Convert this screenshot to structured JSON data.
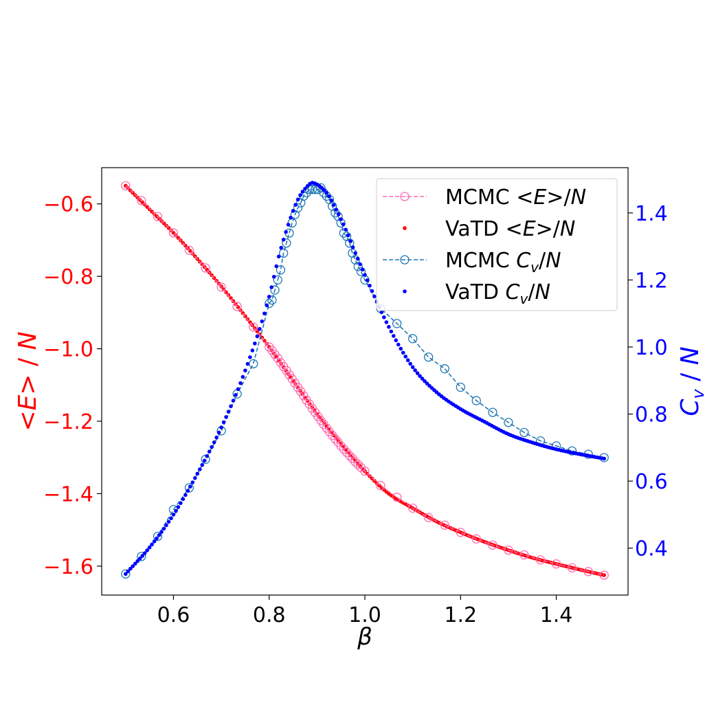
{
  "chart_data": {
    "type": "line",
    "title": "",
    "xlabel": "β",
    "ylabel_left": "<E> / N",
    "ylabel_right": "C_v / N",
    "xlim": [
      0.45,
      1.55
    ],
    "ylim_left": [
      -1.68,
      -0.5
    ],
    "ylim_right": [
      0.26,
      1.535
    ],
    "x_ticks": [
      "0.6",
      "0.8",
      "1.0",
      "1.2",
      "1.4"
    ],
    "x_tick_values": [
      0.6,
      0.8,
      1.0,
      1.2,
      1.4
    ],
    "y_left_ticks": [
      "−0.6",
      "−0.8",
      "−1.0",
      "−1.2",
      "−1.4",
      "−1.6"
    ],
    "y_left_tick_values": [
      -0.6,
      -0.8,
      -1.0,
      -1.2,
      -1.4,
      -1.6
    ],
    "y_right_ticks": [
      "1.4",
      "1.2",
      "1.0",
      "0.8",
      "0.6",
      "0.4"
    ],
    "y_right_tick_values": [
      1.4,
      1.2,
      1.0,
      0.8,
      0.6,
      0.4
    ],
    "legend_position": "upper right",
    "colors": {
      "energy_axis": "#ff0000",
      "cv_axis": "#0000ff",
      "mcmc_energy": "#ff69b4",
      "vatd_energy": "#ff0000",
      "mcmc_cv": "#1f77b4",
      "vatd_cv": "#0000ff"
    },
    "series": [
      {
        "key": "mcmc_energy",
        "name": "MCMC  <E>/N",
        "axis": "left",
        "style": "dashed-circle",
        "x": [
          0.5,
          0.533,
          0.567,
          0.6,
          0.633,
          0.667,
          0.7,
          0.733,
          0.767,
          0.8,
          0.806,
          0.812,
          0.818,
          0.824,
          0.83,
          0.836,
          0.842,
          0.848,
          0.854,
          0.86,
          0.866,
          0.872,
          0.878,
          0.884,
          0.89,
          0.896,
          0.902,
          0.908,
          0.914,
          0.92,
          0.926,
          0.932,
          0.938,
          0.944,
          0.95,
          0.956,
          0.962,
          0.968,
          0.974,
          0.98,
          0.986,
          0.992,
          1.0,
          1.033,
          1.067,
          1.1,
          1.133,
          1.167,
          1.2,
          1.233,
          1.267,
          1.3,
          1.333,
          1.367,
          1.4,
          1.433,
          1.467,
          1.5
        ],
        "y": [
          -0.55,
          -0.591,
          -0.635,
          -0.68,
          -0.728,
          -0.777,
          -0.83,
          -0.883,
          -0.94,
          -0.995,
          -1.005,
          -1.016,
          -1.026,
          -1.038,
          -1.049,
          -1.06,
          -1.072,
          -1.083,
          -1.095,
          -1.107,
          -1.118,
          -1.13,
          -1.142,
          -1.153,
          -1.165,
          -1.176,
          -1.187,
          -1.198,
          -1.209,
          -1.219,
          -1.229,
          -1.239,
          -1.249,
          -1.258,
          -1.268,
          -1.277,
          -1.286,
          -1.295,
          -1.303,
          -1.312,
          -1.32,
          -1.328,
          -1.338,
          -1.378,
          -1.41,
          -1.44,
          -1.466,
          -1.487,
          -1.507,
          -1.525,
          -1.542,
          -1.556,
          -1.569,
          -1.583,
          -1.594,
          -1.605,
          -1.615,
          -1.625
        ]
      },
      {
        "key": "vatd_energy",
        "name": "VaTD  <E>/N",
        "axis": "left",
        "style": "dots",
        "x": [
          0.5,
          0.55,
          0.6,
          0.65,
          0.7,
          0.75,
          0.8,
          0.85,
          0.9,
          0.95,
          1.0,
          1.05,
          1.1,
          1.15,
          1.2,
          1.25,
          1.3,
          1.35,
          1.4,
          1.45,
          1.5
        ],
        "y": [
          -0.55,
          -0.615,
          -0.68,
          -0.752,
          -0.828,
          -0.91,
          -0.995,
          -1.088,
          -1.18,
          -1.263,
          -1.338,
          -1.4,
          -1.44,
          -1.477,
          -1.507,
          -1.533,
          -1.556,
          -1.577,
          -1.594,
          -1.61,
          -1.625
        ]
      },
      {
        "key": "mcmc_cv",
        "name": "MCMC C_v/N",
        "axis": "right",
        "style": "dashed-circle",
        "x": [
          0.5,
          0.533,
          0.567,
          0.6,
          0.633,
          0.667,
          0.7,
          0.733,
          0.767,
          0.8,
          0.806,
          0.812,
          0.818,
          0.824,
          0.83,
          0.836,
          0.842,
          0.848,
          0.854,
          0.86,
          0.866,
          0.872,
          0.878,
          0.884,
          0.89,
          0.896,
          0.902,
          0.908,
          0.914,
          0.92,
          0.926,
          0.932,
          0.938,
          0.944,
          0.95,
          0.956,
          0.962,
          0.968,
          0.974,
          0.98,
          0.986,
          0.992,
          1.0,
          1.033,
          1.067,
          1.1,
          1.133,
          1.167,
          1.2,
          1.233,
          1.267,
          1.3,
          1.333,
          1.367,
          1.4,
          1.433,
          1.467,
          1.5
        ],
        "y": [
          0.323,
          0.375,
          0.435,
          0.515,
          0.58,
          0.665,
          0.75,
          0.86,
          0.95,
          1.13,
          1.14,
          1.17,
          1.2,
          1.23,
          1.28,
          1.31,
          1.34,
          1.37,
          1.395,
          1.415,
          1.43,
          1.45,
          1.46,
          1.47,
          1.47,
          1.47,
          1.47,
          1.475,
          1.46,
          1.45,
          1.44,
          1.42,
          1.4,
          1.39,
          1.37,
          1.34,
          1.33,
          1.31,
          1.28,
          1.26,
          1.24,
          1.225,
          1.2,
          1.115,
          1.07,
          1.025,
          0.97,
          0.935,
          0.88,
          0.84,
          0.805,
          0.775,
          0.745,
          0.72,
          0.705,
          0.69,
          0.68,
          0.67
        ]
      },
      {
        "key": "vatd_cv",
        "name": "VaTD C_v/N",
        "axis": "right",
        "style": "dots",
        "x": [
          0.5,
          0.55,
          0.6,
          0.65,
          0.7,
          0.75,
          0.8,
          0.82,
          0.84,
          0.86,
          0.88,
          0.89,
          0.9,
          0.92,
          0.94,
          0.96,
          0.98,
          1.0,
          1.05,
          1.1,
          1.15,
          1.2,
          1.25,
          1.3,
          1.35,
          1.4,
          1.45,
          1.5
        ],
        "y": [
          0.323,
          0.402,
          0.5,
          0.622,
          0.76,
          0.93,
          1.15,
          1.27,
          1.365,
          1.44,
          1.48,
          1.49,
          1.485,
          1.46,
          1.41,
          1.35,
          1.28,
          1.215,
          1.06,
          0.94,
          0.865,
          0.815,
          0.777,
          0.74,
          0.715,
          0.695,
          0.68,
          0.667
        ]
      }
    ]
  }
}
